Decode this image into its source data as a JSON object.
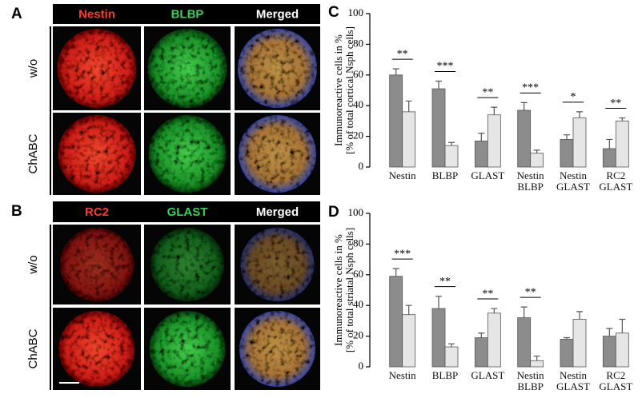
{
  "image_panels": [
    {
      "label": "A",
      "columns": [
        "Nestin",
        "BLBP",
        "Merged"
      ],
      "rows": [
        "w/o",
        "ChABC"
      ],
      "column_colors": [
        "#ff3a2a",
        "#35d257",
        "#ffffff"
      ]
    },
    {
      "label": "B",
      "columns": [
        "RC2",
        "GLAST",
        "Merged"
      ],
      "rows": [
        "w/o",
        "ChABC"
      ],
      "column_colors": [
        "#ff3a2a",
        "#35d257",
        "#ffffff"
      ]
    }
  ],
  "chart_data": [
    {
      "type": "bar",
      "panel_label": "C",
      "ylabel": [
        "Immunoreactive cells in %",
        "[% of total cortical Nsph cells]"
      ],
      "categories": [
        "Nestin",
        "BLBP",
        "GLAST",
        "Nestin BLBP",
        "Nestin GLAST",
        "RC2 GLAST"
      ],
      "series": [
        {
          "color": "#8c8c8c",
          "values": [
            60,
            51,
            17,
            37,
            18,
            12
          ],
          "errors": [
            4,
            5,
            5,
            5,
            3,
            6
          ]
        },
        {
          "color": "#e6e6e6",
          "values": [
            36,
            14,
            34,
            9,
            32,
            30
          ],
          "errors": [
            7,
            2,
            5,
            2,
            4,
            2
          ]
        }
      ],
      "significance": [
        "**",
        "***",
        "**",
        "***",
        "*",
        "**"
      ],
      "ylim": [
        0,
        100
      ],
      "yticks": [
        0,
        20,
        40,
        60,
        80,
        100
      ]
    },
    {
      "type": "bar",
      "panel_label": "D",
      "ylabel": [
        "Immunoreactive cells in %",
        "[% of total striatal Nsph cells]"
      ],
      "categories": [
        "Nestin",
        "BLBP",
        "GLAST",
        "Nestin BLBP",
        "Nestin GLAST",
        "RC2 GLAST"
      ],
      "series": [
        {
          "color": "#8c8c8c",
          "values": [
            59,
            38,
            19,
            32,
            18,
            20
          ],
          "errors": [
            5,
            8,
            3,
            7,
            1,
            5
          ]
        },
        {
          "color": "#e6e6e6",
          "values": [
            34,
            13,
            35,
            4,
            31,
            22
          ],
          "errors": [
            6,
            2,
            3,
            3,
            5,
            9
          ]
        }
      ],
      "significance": [
        "***",
        "**",
        "**",
        "**",
        null,
        null
      ],
      "ylim": [
        0,
        100
      ],
      "yticks": [
        0,
        20,
        40,
        60,
        80,
        100
      ]
    }
  ]
}
